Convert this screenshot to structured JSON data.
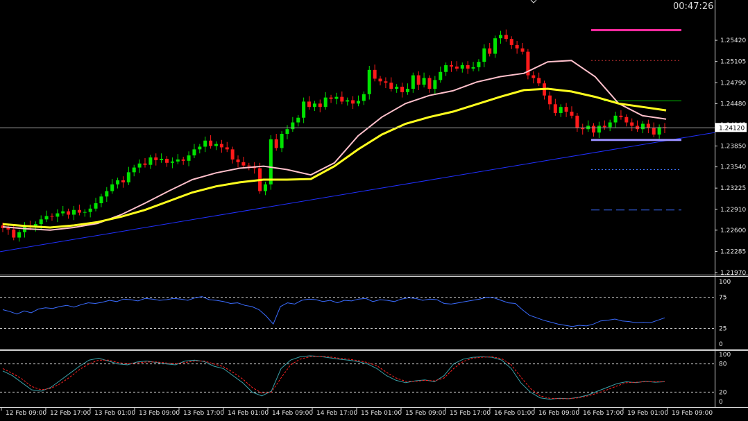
{
  "clock": "00:47:26",
  "colors": {
    "bg": "#000000",
    "axis": "#d8d8d8",
    "bull": "#00e400",
    "bear": "#ff1a1a",
    "ma_fast": "#ffc0cb",
    "ma_slow": "#ffff1e",
    "trendline": "#2030ff",
    "rsi": "#3a6cff",
    "stoch_main": "#3aa0a8",
    "stoch_signal": "#ff2020",
    "level_magenta": "#ff2aa0",
    "level_red_dotted": "#c03030",
    "level_green": "#00d000",
    "level_violet": "#9a90ff",
    "level_blue_dotted": "#3a70ff",
    "level_blue_dashed": "#3a6cff"
  },
  "chart_data": [
    {
      "type": "candlestick",
      "symbol_current_price": "1.24120",
      "ylim": [
        1.2197,
        1.2573
      ],
      "yticks": [
        "1.25420",
        "1.25105",
        "1.24790",
        "1.24480",
        "1.24165",
        "1.23850",
        "1.23540",
        "1.23225",
        "1.22910",
        "1.22600",
        "1.22285",
        "1.21970"
      ],
      "xticks": [
        "12 Feb 09:00",
        "12 Feb 17:00",
        "13 Feb 01:00",
        "13 Feb 09:00",
        "13 Feb 17:00",
        "14 Feb 01:00",
        "14 Feb 09:00",
        "14 Feb 17:00",
        "15 Feb 01:00",
        "15 Feb 09:00",
        "15 Feb 17:00",
        "16 Feb 01:00",
        "16 Feb 09:00",
        "16 Feb 17:00",
        "19 Feb 01:00",
        "19 Feb 09:00"
      ],
      "candles_close": [
        1.2263,
        1.2261,
        1.2249,
        1.2257,
        1.2266,
        1.2264,
        1.2269,
        1.2276,
        1.2281,
        1.228,
        1.2285,
        1.2288,
        1.2283,
        1.229,
        1.2286,
        1.2287,
        1.2292,
        1.23,
        1.231,
        1.2318,
        1.2328,
        1.2334,
        1.2331,
        1.2346,
        1.2353,
        1.2359,
        1.2357,
        1.2368,
        1.2364,
        1.2366,
        1.236,
        1.2362,
        1.2365,
        1.2363,
        1.2371,
        1.238,
        1.2384,
        1.2393,
        1.2385,
        1.2388,
        1.2383,
        1.238,
        1.2365,
        1.2361,
        1.2356,
        1.2355,
        1.2352,
        1.2318,
        1.2328,
        1.2395,
        1.2382,
        1.2403,
        1.241,
        1.242,
        1.2427,
        1.2451,
        1.2443,
        1.2448,
        1.2443,
        1.2457,
        1.2455,
        1.2458,
        1.2451,
        1.2453,
        1.2448,
        1.2452,
        1.2462,
        1.2498,
        1.2485,
        1.2481,
        1.2479,
        1.247,
        1.2473,
        1.2465,
        1.247,
        1.249,
        1.2476,
        1.2486,
        1.247,
        1.2483,
        1.2495,
        1.2505,
        1.2503,
        1.25,
        1.2505,
        1.25,
        1.2502,
        1.251,
        1.253,
        1.2522,
        1.2545,
        1.255,
        1.2544,
        1.2535,
        1.253,
        1.2525,
        1.249,
        1.2486,
        1.2478,
        1.246,
        1.2447,
        1.2434,
        1.2443,
        1.2436,
        1.243,
        1.2412,
        1.241,
        1.2415,
        1.2405,
        1.2415,
        1.2413,
        1.242,
        1.243,
        1.2428,
        1.242,
        1.2415,
        1.241,
        1.2418,
        1.2412,
        1.2402,
        1.2413,
        1.2412
      ],
      "ma_fast": {
        "y": [
          1.2265,
          1.2262,
          1.226,
          1.2264,
          1.227,
          1.2283,
          1.23,
          1.2318,
          1.2335,
          1.2345,
          1.2352,
          1.2355,
          1.235,
          1.2342,
          1.236,
          1.24,
          1.2428,
          1.2448,
          1.246,
          1.2467,
          1.248,
          1.2488,
          1.2493,
          1.251,
          1.2512,
          1.2488,
          1.2448,
          1.243,
          1.2425
        ]
      },
      "ma_slow": {
        "y": [
          1.2269,
          1.2266,
          1.2264,
          1.2267,
          1.2272,
          1.228,
          1.229,
          1.2303,
          1.2316,
          1.2325,
          1.2331,
          1.2335,
          1.2335,
          1.2336,
          1.2355,
          1.238,
          1.2402,
          1.2418,
          1.2428,
          1.2436,
          1.2447,
          1.2458,
          1.2468,
          1.247,
          1.2466,
          1.2458,
          1.2448,
          1.2443,
          1.2438
        ]
      },
      "trendline": {
        "from": [
          0,
          1.2228
        ],
        "to": [
          1,
          1.2405
        ]
      },
      "levels": [
        {
          "name": "magenta",
          "value": 1.2557,
          "style": "solid"
        },
        {
          "name": "red-dotted",
          "value": 1.2512,
          "style": "dotted"
        },
        {
          "name": "green",
          "value": 1.2452,
          "style": "solid"
        },
        {
          "name": "violet",
          "value": 1.2394,
          "style": "solid"
        },
        {
          "name": "blue-dotted",
          "value": 1.235,
          "style": "dotted"
        },
        {
          "name": "blue-dashed",
          "value": 1.229,
          "style": "dashed"
        }
      ]
    },
    {
      "type": "line",
      "indicator": "RSI",
      "ylim": [
        0,
        100
      ],
      "yticks": [
        "100",
        "75",
        "25",
        "0"
      ],
      "levels": [
        75,
        25
      ],
      "values": [
        55,
        52,
        48,
        53,
        50,
        56,
        58,
        57,
        60,
        62,
        59,
        63,
        66,
        65,
        67,
        70,
        68,
        72,
        71,
        69,
        73,
        72,
        70,
        71,
        73,
        72,
        70,
        74,
        76,
        71,
        70,
        68,
        65,
        66,
        62,
        60,
        55,
        45,
        32,
        60,
        66,
        64,
        70,
        72,
        71,
        68,
        70,
        66,
        70,
        69,
        72,
        73,
        68,
        71,
        70,
        68,
        72,
        74,
        73,
        70,
        72,
        71,
        65,
        64,
        66,
        68,
        70,
        72,
        75,
        74,
        70,
        66,
        65,
        55,
        46,
        42,
        38,
        35,
        32,
        30,
        28,
        30,
        29,
        32,
        37,
        38,
        40,
        37,
        36,
        34,
        35,
        34,
        38,
        42
      ]
    },
    {
      "type": "line",
      "indicator": "Stochastic",
      "ylim": [
        0,
        100
      ],
      "yticks": [
        "100",
        "80",
        "20",
        "0"
      ],
      "levels": [
        80,
        20
      ],
      "series": [
        {
          "values": [
            65,
            55,
            40,
            25,
            22,
            30,
            45,
            60,
            75,
            88,
            92,
            86,
            80,
            78,
            84,
            86,
            83,
            80,
            78,
            86,
            88,
            85,
            75,
            70,
            55,
            40,
            20,
            12,
            22,
            70,
            88,
            95,
            97,
            96,
            93,
            90,
            88,
            85,
            80,
            70,
            55,
            45,
            40,
            44,
            46,
            42,
            55,
            80,
            90,
            94,
            95,
            94,
            88,
            70,
            40,
            20,
            8,
            5,
            7,
            6,
            9,
            14,
            22,
            30,
            38,
            42,
            40,
            43,
            41,
            42
          ]
        },
        {
          "values": [
            70,
            60,
            48,
            32,
            25,
            28,
            38,
            52,
            68,
            80,
            88,
            88,
            83,
            80,
            82,
            84,
            84,
            82,
            80,
            83,
            86,
            86,
            80,
            74,
            62,
            48,
            30,
            18,
            20,
            50,
            78,
            90,
            95,
            96,
            95,
            92,
            90,
            87,
            83,
            76,
            62,
            50,
            43,
            43,
            45,
            44,
            50,
            70,
            85,
            92,
            94,
            95,
            91,
            78,
            52,
            28,
            12,
            7,
            6,
            6,
            8,
            12,
            18,
            25,
            33,
            40,
            41,
            42,
            42,
            42
          ]
        }
      ]
    }
  ]
}
